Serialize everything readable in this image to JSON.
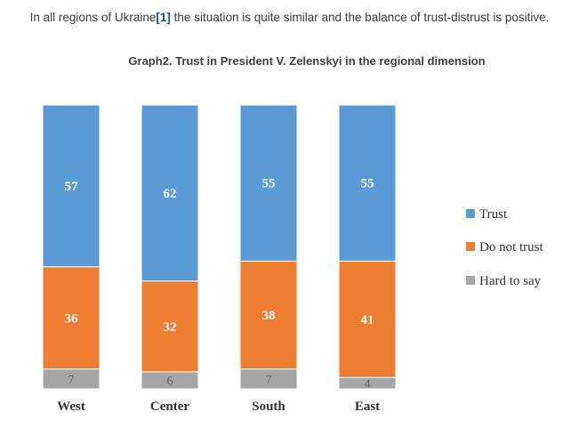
{
  "intro": {
    "before": "In all regions of Ukraine",
    "ref": "[1]",
    "after": " the situation is quite similar and the balance of trust-distrust is positive."
  },
  "chart_data": {
    "type": "bar",
    "stacked": true,
    "title": "Graph2. Trust in President V. Zelenskyi in the regional dimension",
    "categories": [
      "West",
      "Center",
      "South",
      "East"
    ],
    "series": [
      {
        "name": "Hard to say",
        "values": [
          7,
          6,
          7,
          4
        ],
        "color": "#a5a5a5"
      },
      {
        "name": "Do not trust",
        "values": [
          36,
          32,
          38,
          41
        ],
        "color": "#ed7d31"
      },
      {
        "name": "Trust",
        "values": [
          57,
          62,
          55,
          55
        ],
        "color": "#5b9bd5"
      }
    ],
    "legend_order": [
      "Trust",
      "Do not trust",
      "Hard to say"
    ],
    "ylim": [
      0,
      100
    ],
    "xlabel": "",
    "ylabel": ""
  }
}
